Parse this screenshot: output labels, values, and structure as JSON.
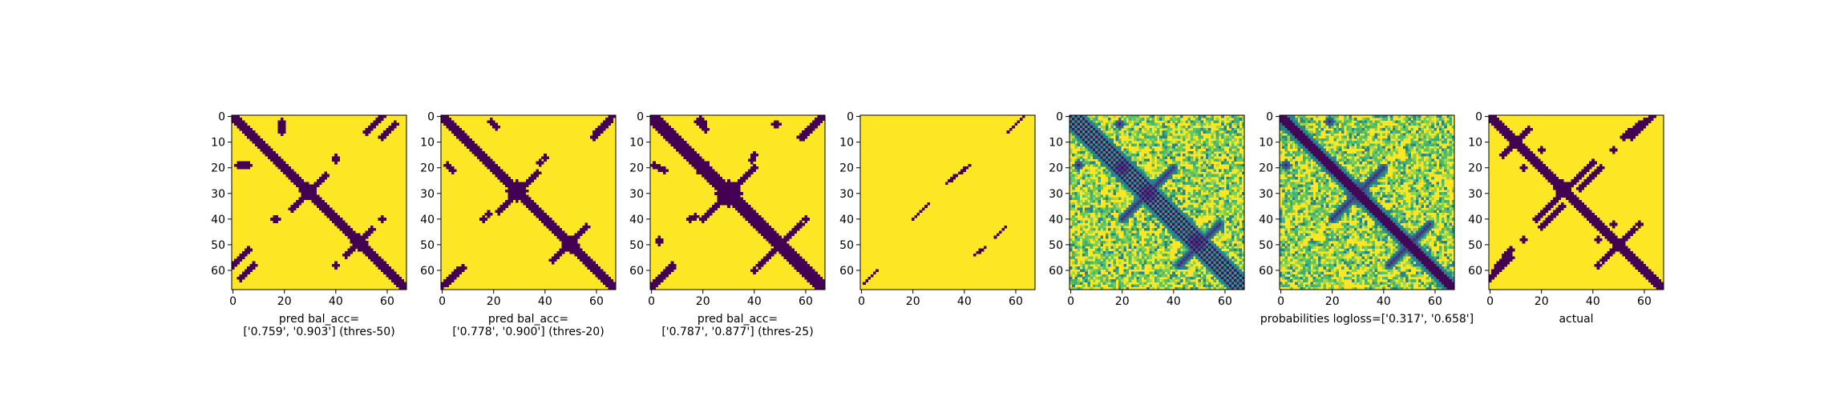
{
  "figure": {
    "background": "#ffffff",
    "panel_count": 7
  },
  "colors": {
    "yellow": "#fde725",
    "purple": "#440154",
    "mid_teal": "#21918c",
    "light_green": "#5ec962",
    "dark_blue": "#3b528b"
  },
  "chart_data": [
    {
      "type": "heatmap",
      "panel": 1,
      "xlabel": "pred bal_acc=\n['0.759', '0.903'] (thres-50)",
      "xlabel_lines": [
        "pred bal_acc=",
        "['0.759', '0.903'] (thres-50)"
      ],
      "size": 68,
      "xticks": [
        0,
        20,
        40,
        60
      ],
      "yticks": [
        0,
        10,
        20,
        30,
        40,
        50,
        60
      ],
      "xlim": [
        0,
        67
      ],
      "ylim": [
        67,
        0
      ],
      "colormap": "viridis",
      "pattern": "binary",
      "diagonal_halfwidth": 2,
      "blobs": [
        {
          "x": 29,
          "y": 29,
          "r": 3
        },
        {
          "x": 49,
          "y": 49,
          "r": 3
        },
        {
          "x": 20,
          "y": 20,
          "r": 2
        }
      ],
      "antidiagonals": [
        {
          "x0": 23,
          "y0": 36,
          "x1": 36,
          "y1": 23,
          "w": 1
        },
        {
          "x0": 44,
          "y0": 54,
          "x1": 54,
          "y1": 44,
          "w": 1
        }
      ],
      "offdiag_segments": [
        {
          "x0": 52,
          "y0": 6,
          "x1": 58,
          "y1": 0,
          "w": 1
        },
        {
          "x0": 3,
          "y0": 63,
          "x1": 8,
          "y1": 58,
          "w": 1
        },
        {
          "x0": 2,
          "y0": 19,
          "x1": 6,
          "y1": 19,
          "w": 1
        }
      ],
      "dots": [
        {
          "x": 19,
          "y": 2,
          "r": 1
        },
        {
          "x": 40,
          "y": 16,
          "r": 1
        },
        {
          "x": 17,
          "y": 40,
          "r": 1
        },
        {
          "x": 58,
          "y": 40,
          "r": 1
        }
      ]
    },
    {
      "type": "heatmap",
      "panel": 2,
      "xlabel": "pred bal_acc=\n['0.778', '0.900'] (thres-20)",
      "xlabel_lines": [
        "pred bal_acc=",
        "['0.778', '0.900'] (thres-20)"
      ],
      "size": 68,
      "xticks": [
        0,
        20,
        40,
        60
      ],
      "yticks": [
        0,
        10,
        20,
        30,
        40,
        50,
        60
      ],
      "xlim": [
        0,
        67
      ],
      "ylim": [
        67,
        0
      ],
      "colormap": "viridis",
      "pattern": "binary",
      "diagonal_halfwidth": 2,
      "blobs": [
        {
          "x": 29,
          "y": 29,
          "r": 4
        },
        {
          "x": 50,
          "y": 50,
          "r": 3
        },
        {
          "x": 20,
          "y": 20,
          "r": 2
        },
        {
          "x": 20,
          "y": 3,
          "r": 1
        }
      ],
      "antidiagonals": [
        {
          "x0": 22,
          "y0": 37,
          "x1": 37,
          "y1": 22,
          "w": 1
        },
        {
          "x0": 43,
          "y0": 56,
          "x1": 56,
          "y1": 43,
          "w": 1
        }
      ],
      "offdiag_segments": [
        {
          "x0": 60,
          "y0": 6,
          "x1": 66,
          "y1": 0,
          "w": 1
        },
        {
          "x0": 2,
          "y0": 65,
          "x1": 8,
          "y1": 59,
          "w": 1
        },
        {
          "x0": 2,
          "y0": 19,
          "x1": 4,
          "y1": 21,
          "w": 1
        }
      ],
      "dots": [
        {
          "x": 40,
          "y": 16,
          "r": 1
        },
        {
          "x": 18,
          "y": 38,
          "r": 1
        }
      ]
    },
    {
      "type": "heatmap",
      "panel": 3,
      "xlabel": "pred bal_acc=\n['0.787', '0.877'] (thres-25)",
      "xlabel_lines": [
        "pred bal_acc=",
        "['0.787', '0.877'] (thres-25)"
      ],
      "size": 68,
      "xticks": [
        0,
        20,
        40,
        60
      ],
      "yticks": [
        0,
        10,
        20,
        30,
        40,
        50,
        60
      ],
      "xlim": [
        0,
        67
      ],
      "ylim": [
        67,
        0
      ],
      "colormap": "viridis",
      "pattern": "binary",
      "diagonal_halfwidth": 3,
      "blobs": [
        {
          "x": 30,
          "y": 30,
          "r": 5
        },
        {
          "x": 50,
          "y": 50,
          "r": 3
        },
        {
          "x": 20,
          "y": 20,
          "r": 3
        },
        {
          "x": 19,
          "y": 2,
          "r": 2
        }
      ],
      "antidiagonals": [
        {
          "x0": 20,
          "y0": 40,
          "x1": 40,
          "y1": 20,
          "w": 1
        },
        {
          "x0": 42,
          "y0": 58,
          "x1": 58,
          "y1": 42,
          "w": 1
        }
      ],
      "offdiag_segments": [
        {
          "x0": 58,
          "y0": 8,
          "x1": 66,
          "y1": 0,
          "w": 1
        },
        {
          "x0": 1,
          "y0": 66,
          "x1": 8,
          "y1": 59,
          "w": 1
        },
        {
          "x0": 1,
          "y0": 19,
          "x1": 5,
          "y1": 21,
          "w": 1
        }
      ],
      "dots": [
        {
          "x": 48,
          "y": 3,
          "r": 1
        },
        {
          "x": 40,
          "y": 15,
          "r": 1
        },
        {
          "x": 17,
          "y": 39,
          "r": 1
        },
        {
          "x": 3,
          "y": 49,
          "r": 1
        },
        {
          "x": 60,
          "y": 40,
          "r": 1
        }
      ]
    },
    {
      "type": "heatmap",
      "panel": 4,
      "xlabel": "",
      "xlabel_lines": [],
      "size": 68,
      "xticks": [
        0,
        20,
        40,
        60
      ],
      "yticks": [
        0,
        10,
        20,
        30,
        40,
        50,
        60
      ],
      "xlim": [
        0,
        67
      ],
      "ylim": [
        67,
        0
      ],
      "colormap": "viridis",
      "pattern": "sparse",
      "diagonal_halfwidth": -1,
      "blobs": [],
      "antidiagonals": [
        {
          "x0": 20,
          "y0": 40,
          "x1": 26,
          "y1": 34,
          "w": 0
        },
        {
          "x0": 33,
          "y0": 26,
          "x1": 42,
          "y1": 19,
          "w": 0
        },
        {
          "x0": 44,
          "y0": 54,
          "x1": 48,
          "y1": 51,
          "w": 0
        },
        {
          "x0": 52,
          "y0": 47,
          "x1": 56,
          "y1": 43,
          "w": 0
        },
        {
          "x0": 57,
          "y0": 6,
          "x1": 63,
          "y1": 0,
          "w": 0
        },
        {
          "x0": 1,
          "y0": 65,
          "x1": 6,
          "y1": 60,
          "w": 0
        }
      ],
      "offdiag_segments": [],
      "dots": []
    },
    {
      "type": "heatmap",
      "panel": 5,
      "xlabel": "",
      "xlabel_lines": [],
      "size": 68,
      "xticks": [
        0,
        20,
        40,
        60
      ],
      "yticks": [
        0,
        10,
        20,
        30,
        40,
        50,
        60
      ],
      "xlim": [
        0,
        67
      ],
      "ylim": [
        67,
        0
      ],
      "colormap": "viridis",
      "pattern": "continuous-striped",
      "diagonal_halfwidth": 2,
      "blobs": [
        {
          "x": 30,
          "y": 30,
          "r": 4
        },
        {
          "x": 49,
          "y": 49,
          "r": 4
        },
        {
          "x": 20,
          "y": 20,
          "r": 3
        },
        {
          "x": 19,
          "y": 3,
          "r": 2
        }
      ],
      "antidiagonals": [
        {
          "x0": 20,
          "y0": 40,
          "x1": 40,
          "y1": 20,
          "w": 1
        },
        {
          "x0": 42,
          "y0": 58,
          "x1": 58,
          "y1": 42,
          "w": 1
        }
      ],
      "offdiag_segments": [],
      "dots": []
    },
    {
      "type": "heatmap",
      "panel": 6,
      "xlabel": "probabilities logloss=['0.317', '0.658']",
      "xlabel_lines": [
        "probabilities logloss=['0.317', '0.658']"
      ],
      "size": 68,
      "xticks": [
        0,
        20,
        40,
        60
      ],
      "yticks": [
        0,
        10,
        20,
        30,
        40,
        50,
        60
      ],
      "xlim": [
        0,
        67
      ],
      "ylim": [
        67,
        0
      ],
      "colormap": "viridis",
      "pattern": "continuous",
      "diagonal_halfwidth": 2,
      "blobs": [
        {
          "x": 30,
          "y": 30,
          "r": 5
        },
        {
          "x": 50,
          "y": 50,
          "r": 4
        },
        {
          "x": 20,
          "y": 20,
          "r": 3
        },
        {
          "x": 19,
          "y": 2,
          "r": 2
        }
      ],
      "antidiagonals": [
        {
          "x0": 20,
          "y0": 40,
          "x1": 40,
          "y1": 20,
          "w": 1
        },
        {
          "x0": 42,
          "y0": 58,
          "x1": 58,
          "y1": 42,
          "w": 1
        }
      ],
      "offdiag_segments": [],
      "dots": []
    },
    {
      "type": "heatmap",
      "panel": 7,
      "xlabel": "actual",
      "xlabel_lines": [
        "actual"
      ],
      "size": 68,
      "xticks": [
        0,
        20,
        40,
        60
      ],
      "yticks": [
        0,
        10,
        20,
        30,
        40,
        50,
        60
      ],
      "xlim": [
        0,
        67
      ],
      "ylim": [
        67,
        0
      ],
      "colormap": "viridis",
      "pattern": "binary",
      "diagonal_halfwidth": 2,
      "blobs": [
        {
          "x": 28,
          "y": 28,
          "r": 3
        },
        {
          "x": 50,
          "y": 50,
          "r": 2
        },
        {
          "x": 10,
          "y": 10,
          "r": 2
        }
      ],
      "antidiagonals": [
        {
          "x0": 18,
          "y0": 40,
          "x1": 38,
          "y1": 20,
          "w": 1
        },
        {
          "x0": 5,
          "y0": 15,
          "x1": 15,
          "y1": 5,
          "w": 1
        },
        {
          "x0": 44,
          "y0": 56,
          "x1": 56,
          "y1": 44,
          "w": 1
        },
        {
          "x0": 55,
          "y0": 8,
          "x1": 63,
          "y1": 0,
          "w": 1
        }
      ],
      "offdiag_segments": [
        {
          "x0": 2,
          "y0": 60,
          "x1": 8,
          "y1": 52,
          "w": 1
        },
        {
          "x0": 20,
          "y0": 43,
          "x1": 28,
          "y1": 35,
          "w": 1
        }
      ],
      "dots": [
        {
          "x": 13,
          "y": 20,
          "r": 1
        },
        {
          "x": 48,
          "y": 13,
          "r": 1
        },
        {
          "x": 42,
          "y": 48,
          "r": 1
        },
        {
          "x": 58,
          "y": 42,
          "r": 1
        }
      ]
    }
  ]
}
